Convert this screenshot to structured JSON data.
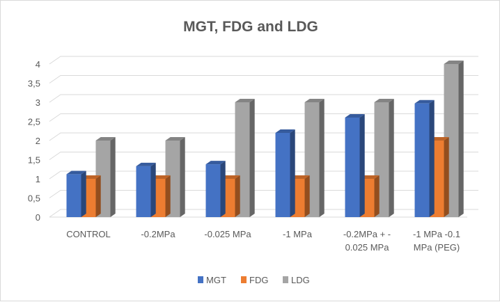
{
  "chart_data": {
    "type": "bar",
    "title": "MGT, FDG and LDG",
    "categories": [
      [
        "CONTROL"
      ],
      [
        "-0.2MPa"
      ],
      [
        "-0.025 MPa"
      ],
      [
        "-1 MPa"
      ],
      [
        "-0.2MPa + -",
        "0.025 MPa"
      ],
      [
        "-1 MPa -0.1",
        "MPa (PEG)"
      ]
    ],
    "series": [
      {
        "name": "MGT",
        "color": "#4472C4",
        "values": [
          1.12,
          1.33,
          1.38,
          2.2,
          2.6,
          2.97
        ]
      },
      {
        "name": "FDG",
        "color": "#ED7D31",
        "values": [
          1,
          1,
          1,
          1,
          1,
          2
        ]
      },
      {
        "name": "LDG",
        "color": "#A5A5A5",
        "values": [
          2,
          2,
          3,
          3,
          3,
          4
        ]
      }
    ],
    "y_ticks": [
      "0",
      "0,5",
      "1",
      "1,5",
      "2",
      "2,5",
      "3",
      "3,5",
      "4"
    ],
    "ylim": [
      0,
      4
    ],
    "xlabel": "",
    "ylabel": "",
    "grid": true,
    "legend_position": "bottom",
    "projection": "3d-clustered-column"
  }
}
